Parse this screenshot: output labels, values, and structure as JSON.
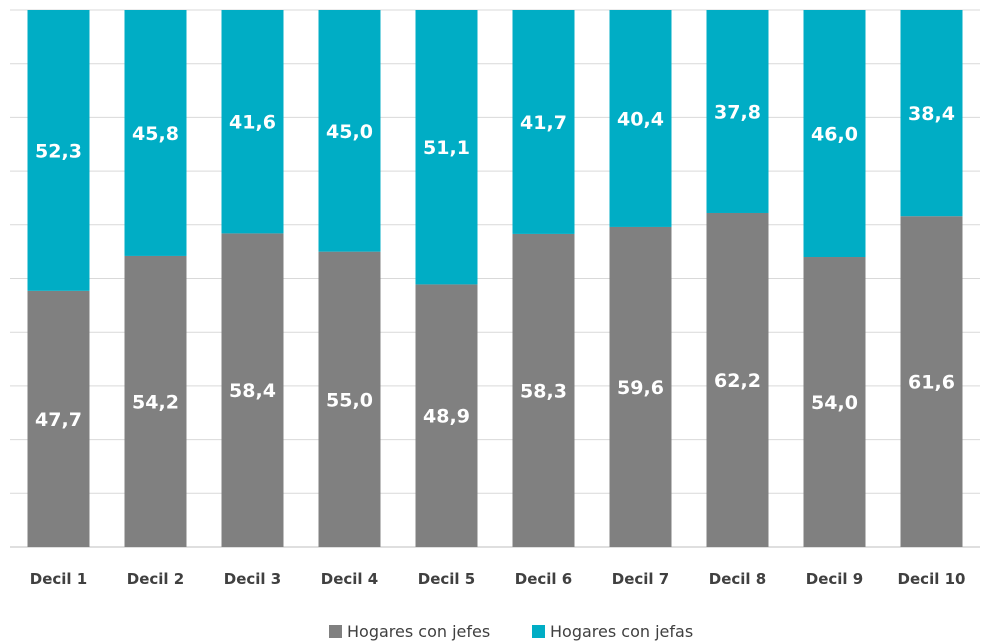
{
  "chart_data": {
    "type": "bar",
    "stacked": true,
    "normalized": true,
    "categories": [
      "Decil 1",
      "Decil 2",
      "Decil 3",
      "Decil 4",
      "Decil 5",
      "Decil 6",
      "Decil 7",
      "Decil 8",
      "Decil 9",
      "Decil 10"
    ],
    "series": [
      {
        "name": "Hogares con jefes",
        "color": "#808080",
        "values": [
          47.7,
          54.2,
          58.4,
          55.0,
          48.9,
          58.3,
          59.6,
          62.2,
          54.0,
          61.6
        ]
      },
      {
        "name": "Hogares con jefas",
        "color": "#00ADC5",
        "values": [
          52.3,
          45.8,
          41.6,
          45.0,
          51.1,
          41.7,
          40.4,
          37.8,
          46.0,
          38.4
        ]
      }
    ],
    "value_labels": [
      [
        "47,7",
        "54,2",
        "58,4",
        "55,0",
        "48,9",
        "58,3",
        "59,6",
        "62,2",
        "54,0",
        "61,6"
      ],
      [
        "52,3",
        "45,8",
        "41,6",
        "45,0",
        "51,1",
        "41,7",
        "40,4",
        "37,8",
        "46,0",
        "38,4"
      ]
    ],
    "ylim": [
      0,
      100
    ],
    "grid": true,
    "legend_position": "bottom"
  }
}
